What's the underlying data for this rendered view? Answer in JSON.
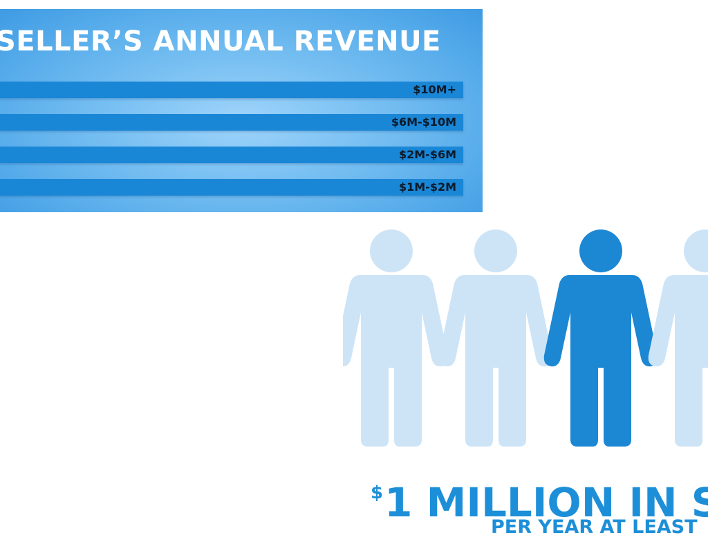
{
  "revenue_chart": {
    "title": "SELLER’S ANNUAL REVENUE",
    "bar_color": "#1a86d6",
    "bars": [
      {
        "label": "$10M+"
      },
      {
        "label": "$6M-$10M"
      },
      {
        "label": "$2M-$6M"
      },
      {
        "label": "$1M-$2M"
      }
    ]
  },
  "people_infographic": {
    "figures": [
      {
        "icon": "person-icon",
        "highlighted": false
      },
      {
        "icon": "person-icon",
        "highlighted": false
      },
      {
        "icon": "person-icon",
        "highlighted": true
      },
      {
        "icon": "person-icon",
        "highlighted": false
      }
    ],
    "highlight_color": "#1c87d3",
    "muted_color": "#cde4f7",
    "headline_currency": "$",
    "headline": "1 MILLION IN S",
    "subline": "PER YEAR AT LEAST"
  }
}
